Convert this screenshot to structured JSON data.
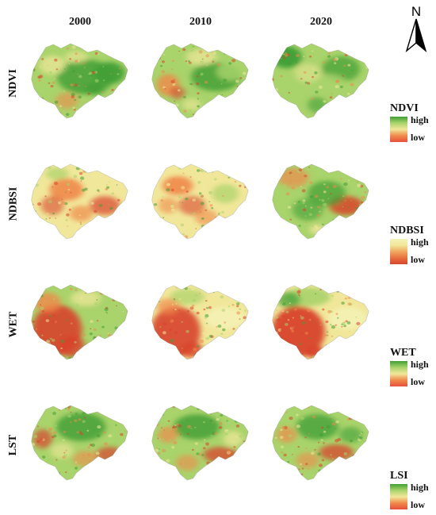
{
  "years": [
    "2000",
    "2010",
    "2020"
  ],
  "rows": [
    {
      "label": "NDVI",
      "legend_title": "NDVI",
      "high": "high",
      "low": "low",
      "colors": {
        "high": "#3f9e35",
        "low": "#e8503a"
      }
    },
    {
      "label": "NDBSI",
      "legend_title": "NDBSI",
      "high": "high",
      "low": "low",
      "colors": {
        "high": "#f4f3b8",
        "low": "#d8442c"
      }
    },
    {
      "label": "WET",
      "legend_title": "WET",
      "high": "high",
      "low": "low",
      "colors": {
        "high": "#3f9e35",
        "low": "#e8503a"
      }
    },
    {
      "label": "LST",
      "legend_title": "LSI",
      "high": "high",
      "low": "low",
      "colors": {
        "high": "#3f9e35",
        "low": "#e8503a"
      }
    }
  ],
  "north_label": "N",
  "palette": {
    "red": "#d8442c",
    "orange": "#f08a4b",
    "yellow": "#f1e79a",
    "lightgreen": "#a9d36b",
    "green": "#3f9e35"
  }
}
